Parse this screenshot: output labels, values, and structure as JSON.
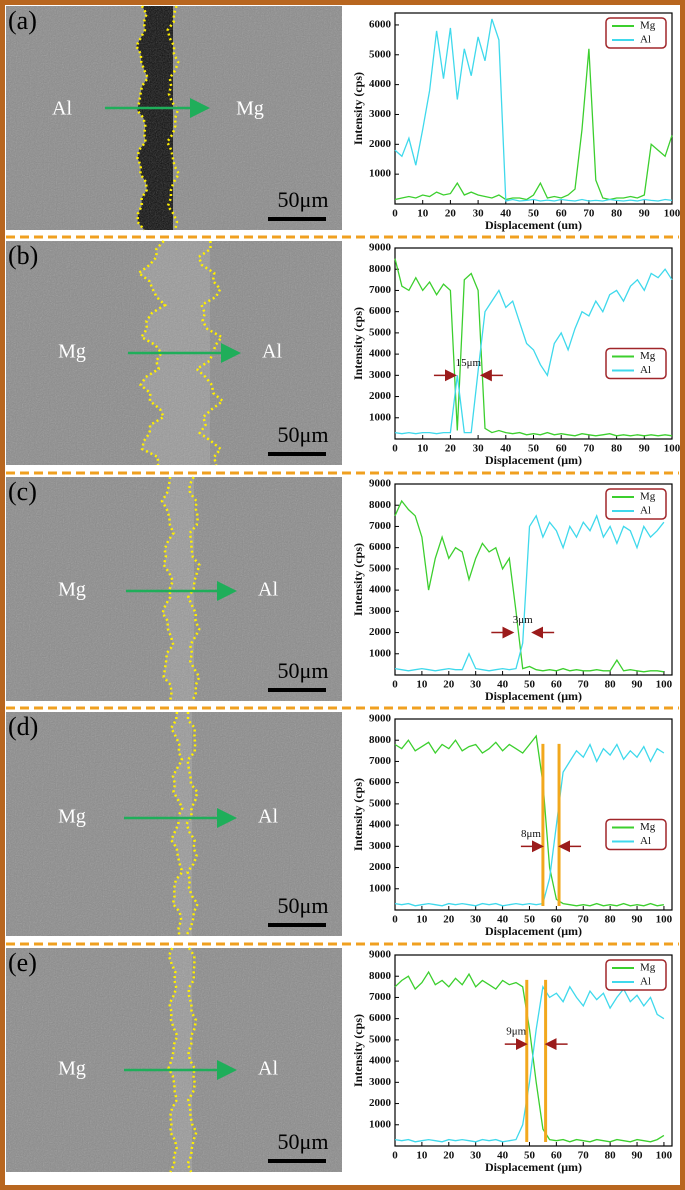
{
  "chart_data": [
    {
      "type": "line",
      "panel_label": "(a)",
      "image_labels": [
        "Al",
        "Mg"
      ],
      "scale_bar": "50μm",
      "xlabel": "Displacement (um)",
      "ylabel": "Intensity (cps)",
      "legend": "upper right",
      "x": [
        0,
        2.5,
        5,
        7.5,
        10,
        12.5,
        15,
        17.5,
        20,
        22.5,
        25,
        27.5,
        30,
        32.5,
        35,
        37.5,
        40,
        42.5,
        45,
        47.5,
        50,
        52.5,
        55,
        57.5,
        60,
        62.5,
        65,
        67.5,
        70,
        72.5,
        75,
        77.5,
        80,
        82.5,
        85,
        87.5,
        90,
        92.5,
        95,
        97.5,
        100
      ],
      "xlim": [
        0,
        100
      ],
      "xticks": [
        0,
        10,
        20,
        30,
        40,
        50,
        60,
        70,
        80,
        90,
        100
      ],
      "ylim": [
        0,
        6400
      ],
      "yticks": [
        1000,
        2000,
        3000,
        4000,
        5000,
        6000
      ],
      "series": [
        {
          "name": "Mg",
          "color": "#3ccf2e",
          "values": [
            150,
            200,
            250,
            200,
            300,
            250,
            400,
            300,
            350,
            700,
            300,
            400,
            300,
            250,
            200,
            300,
            150,
            200,
            200,
            150,
            300,
            700,
            200,
            250,
            200,
            300,
            500,
            2500,
            5200,
            800,
            200,
            150,
            200,
            200,
            250,
            200,
            300,
            2000,
            1800,
            1600,
            2300
          ]
        },
        {
          "name": "Al",
          "color": "#3fd9ec",
          "values": [
            1800,
            1600,
            2200,
            1300,
            2500,
            3800,
            5800,
            4200,
            5900,
            3500,
            5200,
            4300,
            5600,
            4800,
            6200,
            5500,
            100,
            150,
            100,
            120,
            150,
            100,
            130,
            100,
            150,
            120,
            100,
            150,
            100,
            120,
            100,
            150,
            120,
            100,
            130,
            100,
            150,
            120,
            100,
            150,
            120
          ]
        }
      ]
    },
    {
      "type": "line",
      "panel_label": "(b)",
      "image_labels": [
        "Mg",
        "Al"
      ],
      "scale_bar": "50μm",
      "xlabel": "Displacement (μm)",
      "ylabel": "Intensity (cps)",
      "legend": "center right",
      "x": [
        0,
        2.5,
        5,
        7.5,
        10,
        12.5,
        15,
        17.5,
        20,
        22.5,
        25,
        27.5,
        30,
        32.5,
        35,
        37.5,
        40,
        42.5,
        45,
        47.5,
        50,
        52.5,
        55,
        57.5,
        60,
        62.5,
        65,
        67.5,
        70,
        72.5,
        75,
        77.5,
        80,
        82.5,
        85,
        87.5,
        90,
        92.5,
        95,
        97.5,
        100
      ],
      "xlim": [
        0,
        100
      ],
      "xticks": [
        0,
        10,
        20,
        30,
        40,
        50,
        60,
        70,
        80,
        90,
        100
      ],
      "ylim": [
        0,
        9000
      ],
      "yticks": [
        1000,
        2000,
        3000,
        4000,
        5000,
        6000,
        7000,
        8000,
        9000
      ],
      "annotation": {
        "text": "15μm",
        "x": [
          22,
          31
        ],
        "y": 3000
      },
      "series": [
        {
          "name": "Mg",
          "color": "#3ccf2e",
          "values": [
            8500,
            7200,
            7000,
            7600,
            7000,
            7400,
            6800,
            7300,
            7000,
            400,
            7500,
            7800,
            7000,
            500,
            300,
            400,
            300,
            250,
            300,
            200,
            250,
            200,
            300,
            200,
            250,
            200,
            150,
            250,
            200,
            150,
            200,
            250,
            150,
            200,
            150,
            200,
            150,
            200,
            150,
            200,
            150
          ]
        },
        {
          "name": "Al",
          "color": "#3fd9ec",
          "values": [
            300,
            250,
            300,
            250,
            300,
            300,
            250,
            300,
            300,
            3000,
            300,
            300,
            3200,
            6000,
            6500,
            7000,
            6200,
            6500,
            5500,
            4500,
            4200,
            3500,
            3000,
            4500,
            5000,
            4200,
            5200,
            6000,
            5800,
            6500,
            6000,
            6800,
            7000,
            6500,
            7200,
            7500,
            7000,
            7800,
            7600,
            8000,
            7500
          ]
        }
      ]
    },
    {
      "type": "line",
      "panel_label": "(c)",
      "image_labels": [
        "Mg",
        "Al"
      ],
      "scale_bar": "50μm",
      "xlabel": "Displacement (μm)",
      "ylabel": "Intensity (cps)",
      "legend": "upper right",
      "x": [
        0,
        2.5,
        5,
        7.5,
        10,
        12.5,
        15,
        17.5,
        20,
        22.5,
        25,
        27.5,
        30,
        32.5,
        35,
        37.5,
        40,
        42.5,
        45,
        47.5,
        50,
        52.5,
        55,
        57.5,
        60,
        62.5,
        65,
        67.5,
        70,
        72.5,
        75,
        77.5,
        80,
        82.5,
        85,
        87.5,
        90,
        92.5,
        95,
        97.5,
        100
      ],
      "xlim": [
        0,
        103
      ],
      "xticks": [
        0,
        10,
        20,
        30,
        40,
        50,
        60,
        70,
        80,
        90,
        100
      ],
      "ylim": [
        0,
        9000
      ],
      "yticks": [
        1000,
        2000,
        3000,
        4000,
        5000,
        6000,
        7000,
        8000,
        9000
      ],
      "annotation": {
        "text": "3μm",
        "x": [
          44,
          51
        ],
        "y": 2000
      },
      "series": [
        {
          "name": "Mg",
          "color": "#3ccf2e",
          "values": [
            7500,
            8200,
            7800,
            7500,
            6500,
            4000,
            5500,
            6500,
            5500,
            6000,
            5800,
            4500,
            5500,
            6200,
            5800,
            6000,
            5000,
            5500,
            3000,
            300,
            400,
            250,
            200,
            250,
            200,
            300,
            200,
            250,
            200,
            200,
            250,
            200,
            200,
            700,
            200,
            250,
            200,
            150,
            200,
            200,
            150
          ]
        },
        {
          "name": "Al",
          "color": "#3fd9ec",
          "values": [
            300,
            250,
            200,
            250,
            300,
            250,
            200,
            250,
            300,
            250,
            250,
            1000,
            300,
            250,
            200,
            250,
            300,
            250,
            300,
            1500,
            7000,
            7500,
            6500,
            7200,
            6800,
            6000,
            7000,
            6500,
            7200,
            6800,
            7500,
            6500,
            7000,
            6200,
            7000,
            6800,
            6000,
            7000,
            6500,
            6800,
            7200
          ]
        }
      ]
    },
    {
      "type": "line",
      "panel_label": "(d)",
      "image_labels": [
        "Mg",
        "Al"
      ],
      "scale_bar": "50μm",
      "xlabel": "Displacement (μm)",
      "ylabel": "Intensity (cps)",
      "legend": "center right",
      "x": [
        0,
        2.5,
        5,
        7.5,
        10,
        12.5,
        15,
        17.5,
        20,
        22.5,
        25,
        27.5,
        30,
        32.5,
        35,
        37.5,
        40,
        42.5,
        45,
        47.5,
        50,
        52.5,
        55,
        57.5,
        60,
        62.5,
        65,
        67.5,
        70,
        72.5,
        75,
        77.5,
        80,
        82.5,
        85,
        87.5,
        90,
        92.5,
        95,
        97.5,
        100
      ],
      "xlim": [
        0,
        103
      ],
      "xticks": [
        0,
        10,
        20,
        30,
        40,
        50,
        60,
        70,
        80,
        90,
        100
      ],
      "ylim": [
        0,
        9000
      ],
      "yticks": [
        1000,
        2000,
        3000,
        4000,
        5000,
        6000,
        7000,
        8000,
        9000
      ],
      "annotation": {
        "text": "8μm",
        "x": [
          55,
          61
        ],
        "y": 3000,
        "guide_color": "#f2a81d"
      },
      "series": [
        {
          "name": "Mg",
          "color": "#3ccf2e",
          "values": [
            7800,
            7600,
            8000,
            7500,
            7700,
            7900,
            7400,
            7800,
            7600,
            8000,
            7500,
            7700,
            7800,
            7400,
            7600,
            7900,
            7500,
            7800,
            7600,
            7400,
            7800,
            8200,
            6000,
            2000,
            500,
            300,
            250,
            200,
            250,
            200,
            300,
            200,
            250,
            200,
            300,
            200,
            250,
            200,
            300,
            200,
            250
          ]
        },
        {
          "name": "Al",
          "color": "#3fd9ec",
          "values": [
            300,
            250,
            300,
            200,
            250,
            300,
            250,
            200,
            300,
            250,
            300,
            250,
            200,
            300,
            250,
            300,
            200,
            250,
            300,
            250,
            300,
            250,
            300,
            1500,
            4000,
            6500,
            7000,
            7500,
            7200,
            7800,
            7000,
            7600,
            7300,
            7800,
            7100,
            7500,
            7200,
            7700,
            7000,
            7600,
            7400
          ]
        }
      ]
    },
    {
      "type": "line",
      "panel_label": "(e)",
      "image_labels": [
        "Mg",
        "Al"
      ],
      "scale_bar": "50μm",
      "xlabel": "Displacement (μm)",
      "ylabel": "Intensity (cps)",
      "legend": "upper right",
      "x": [
        0,
        2.5,
        5,
        7.5,
        10,
        12.5,
        15,
        17.5,
        20,
        22.5,
        25,
        27.5,
        30,
        32.5,
        35,
        37.5,
        40,
        42.5,
        45,
        47.5,
        50,
        52.5,
        55,
        57.5,
        60,
        62.5,
        65,
        67.5,
        70,
        72.5,
        75,
        77.5,
        80,
        82.5,
        85,
        87.5,
        90,
        92.5,
        95,
        97.5,
        100
      ],
      "xlim": [
        0,
        103
      ],
      "xticks": [
        0,
        10,
        20,
        30,
        40,
        50,
        60,
        70,
        80,
        90,
        100
      ],
      "ylim": [
        0,
        9000
      ],
      "yticks": [
        1000,
        2000,
        3000,
        4000,
        5000,
        6000,
        7000,
        8000,
        9000
      ],
      "annotation": {
        "text": "9μm",
        "x": [
          49,
          56
        ],
        "y": 4800,
        "guide_color": "#f2a81d"
      },
      "series": [
        {
          "name": "Mg",
          "color": "#3ccf2e",
          "values": [
            7500,
            7800,
            8000,
            7400,
            7700,
            8200,
            7600,
            7800,
            7500,
            7900,
            7600,
            8100,
            7500,
            7800,
            7600,
            7400,
            7800,
            7600,
            7700,
            7500,
            5500,
            3000,
            800,
            300,
            250,
            300,
            200,
            300,
            250,
            200,
            300,
            250,
            200,
            300,
            250,
            200,
            300,
            250,
            200,
            300,
            500
          ]
        },
        {
          "name": "Al",
          "color": "#3fd9ec",
          "values": [
            300,
            250,
            300,
            200,
            250,
            300,
            250,
            200,
            300,
            250,
            300,
            250,
            200,
            300,
            250,
            300,
            200,
            250,
            300,
            1000,
            3000,
            5500,
            7500,
            7000,
            7200,
            6800,
            7500,
            7000,
            6600,
            7300,
            6900,
            7200,
            6500,
            7000,
            7400,
            6800,
            7100,
            6600,
            7000,
            6200,
            6000
          ]
        }
      ]
    }
  ]
}
